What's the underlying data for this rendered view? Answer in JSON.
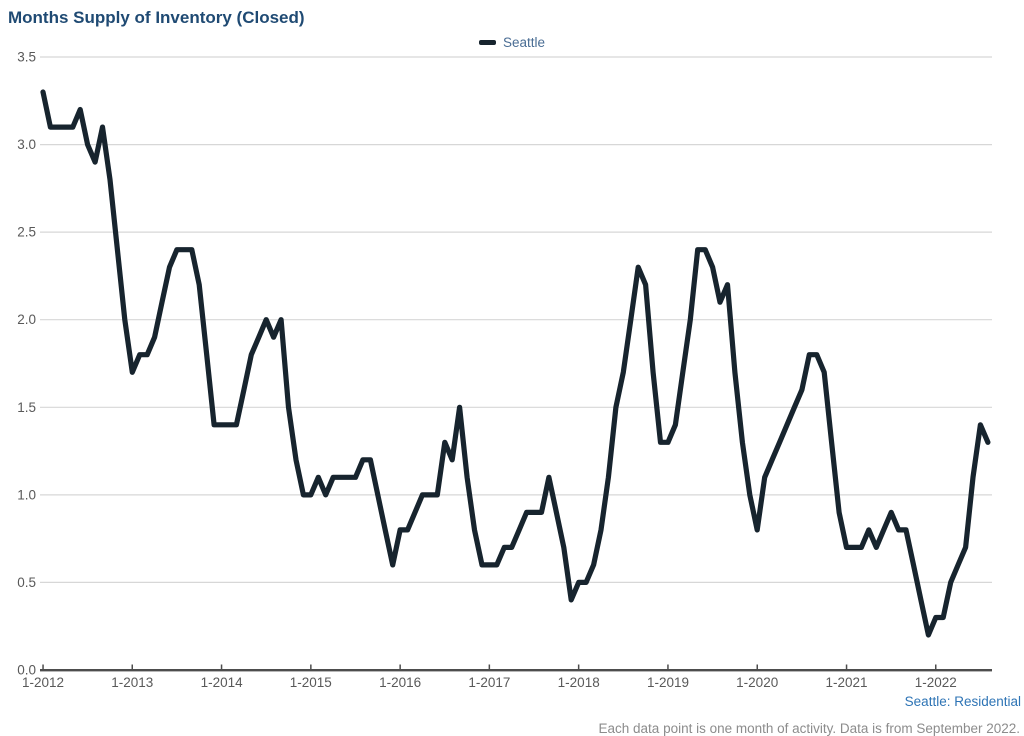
{
  "title": "Months Supply of Inventory (Closed)",
  "legend": {
    "label": "Seattle"
  },
  "footer": {
    "source": "Seattle: Residential",
    "note": "Each data point is one month of activity. Data is from September 2022."
  },
  "colors": {
    "title": "#1f4a73",
    "legend_text": "#4a6d94",
    "axis_text": "#595959",
    "gridline": "#d7d7d7",
    "axis_line": "#4d4d4d",
    "series": "#17242e",
    "footer_source": "#2e74b5",
    "footer_note": "#8c8c8c"
  },
  "chart_data": {
    "type": "line",
    "title": "Months Supply of Inventory (Closed)",
    "series_name": "Seattle",
    "frequency": "monthly",
    "start_month": "1-2012",
    "end_month": "8-2022",
    "x_tick_labels": [
      "1-2012",
      "1-2013",
      "1-2014",
      "1-2015",
      "1-2016",
      "1-2017",
      "1-2018",
      "1-2019",
      "1-2020",
      "1-2021",
      "1-2022"
    ],
    "y_ticks": [
      0.0,
      0.5,
      1.0,
      1.5,
      2.0,
      2.5,
      3.0,
      3.5
    ],
    "ylim": [
      0,
      3.5
    ],
    "grid": "horizontal",
    "legend_position": "top-center",
    "values": [
      3.3,
      3.1,
      3.1,
      3.1,
      3.1,
      3.2,
      3.0,
      2.9,
      3.1,
      2.8,
      2.4,
      2.0,
      1.7,
      1.8,
      1.8,
      1.9,
      2.1,
      2.3,
      2.4,
      2.4,
      2.4,
      2.2,
      1.8,
      1.4,
      1.4,
      1.4,
      1.4,
      1.6,
      1.8,
      1.9,
      2.0,
      1.9,
      2.0,
      1.5,
      1.2,
      1.0,
      1.0,
      1.1,
      1.0,
      1.1,
      1.1,
      1.1,
      1.1,
      1.2,
      1.2,
      1.0,
      0.8,
      0.6,
      0.8,
      0.8,
      0.9,
      1.0,
      1.0,
      1.0,
      1.3,
      1.2,
      1.5,
      1.1,
      0.8,
      0.6,
      0.6,
      0.6,
      0.7,
      0.7,
      0.8,
      0.9,
      0.9,
      0.9,
      1.1,
      0.9,
      0.7,
      0.4,
      0.5,
      0.5,
      0.6,
      0.8,
      1.1,
      1.5,
      1.7,
      2.0,
      2.3,
      2.2,
      1.7,
      1.3,
      1.3,
      1.4,
      1.7,
      2.0,
      2.4,
      2.4,
      2.3,
      2.1,
      2.2,
      1.7,
      1.3,
      1.0,
      0.8,
      1.1,
      1.2,
      1.3,
      1.4,
      1.5,
      1.6,
      1.8,
      1.8,
      1.7,
      1.3,
      0.9,
      0.7,
      0.7,
      0.7,
      0.8,
      0.7,
      0.8,
      0.9,
      0.8,
      0.8,
      0.6,
      0.4,
      0.2,
      0.3,
      0.3,
      0.5,
      0.6,
      0.7,
      1.1,
      1.4,
      1.3
    ]
  }
}
